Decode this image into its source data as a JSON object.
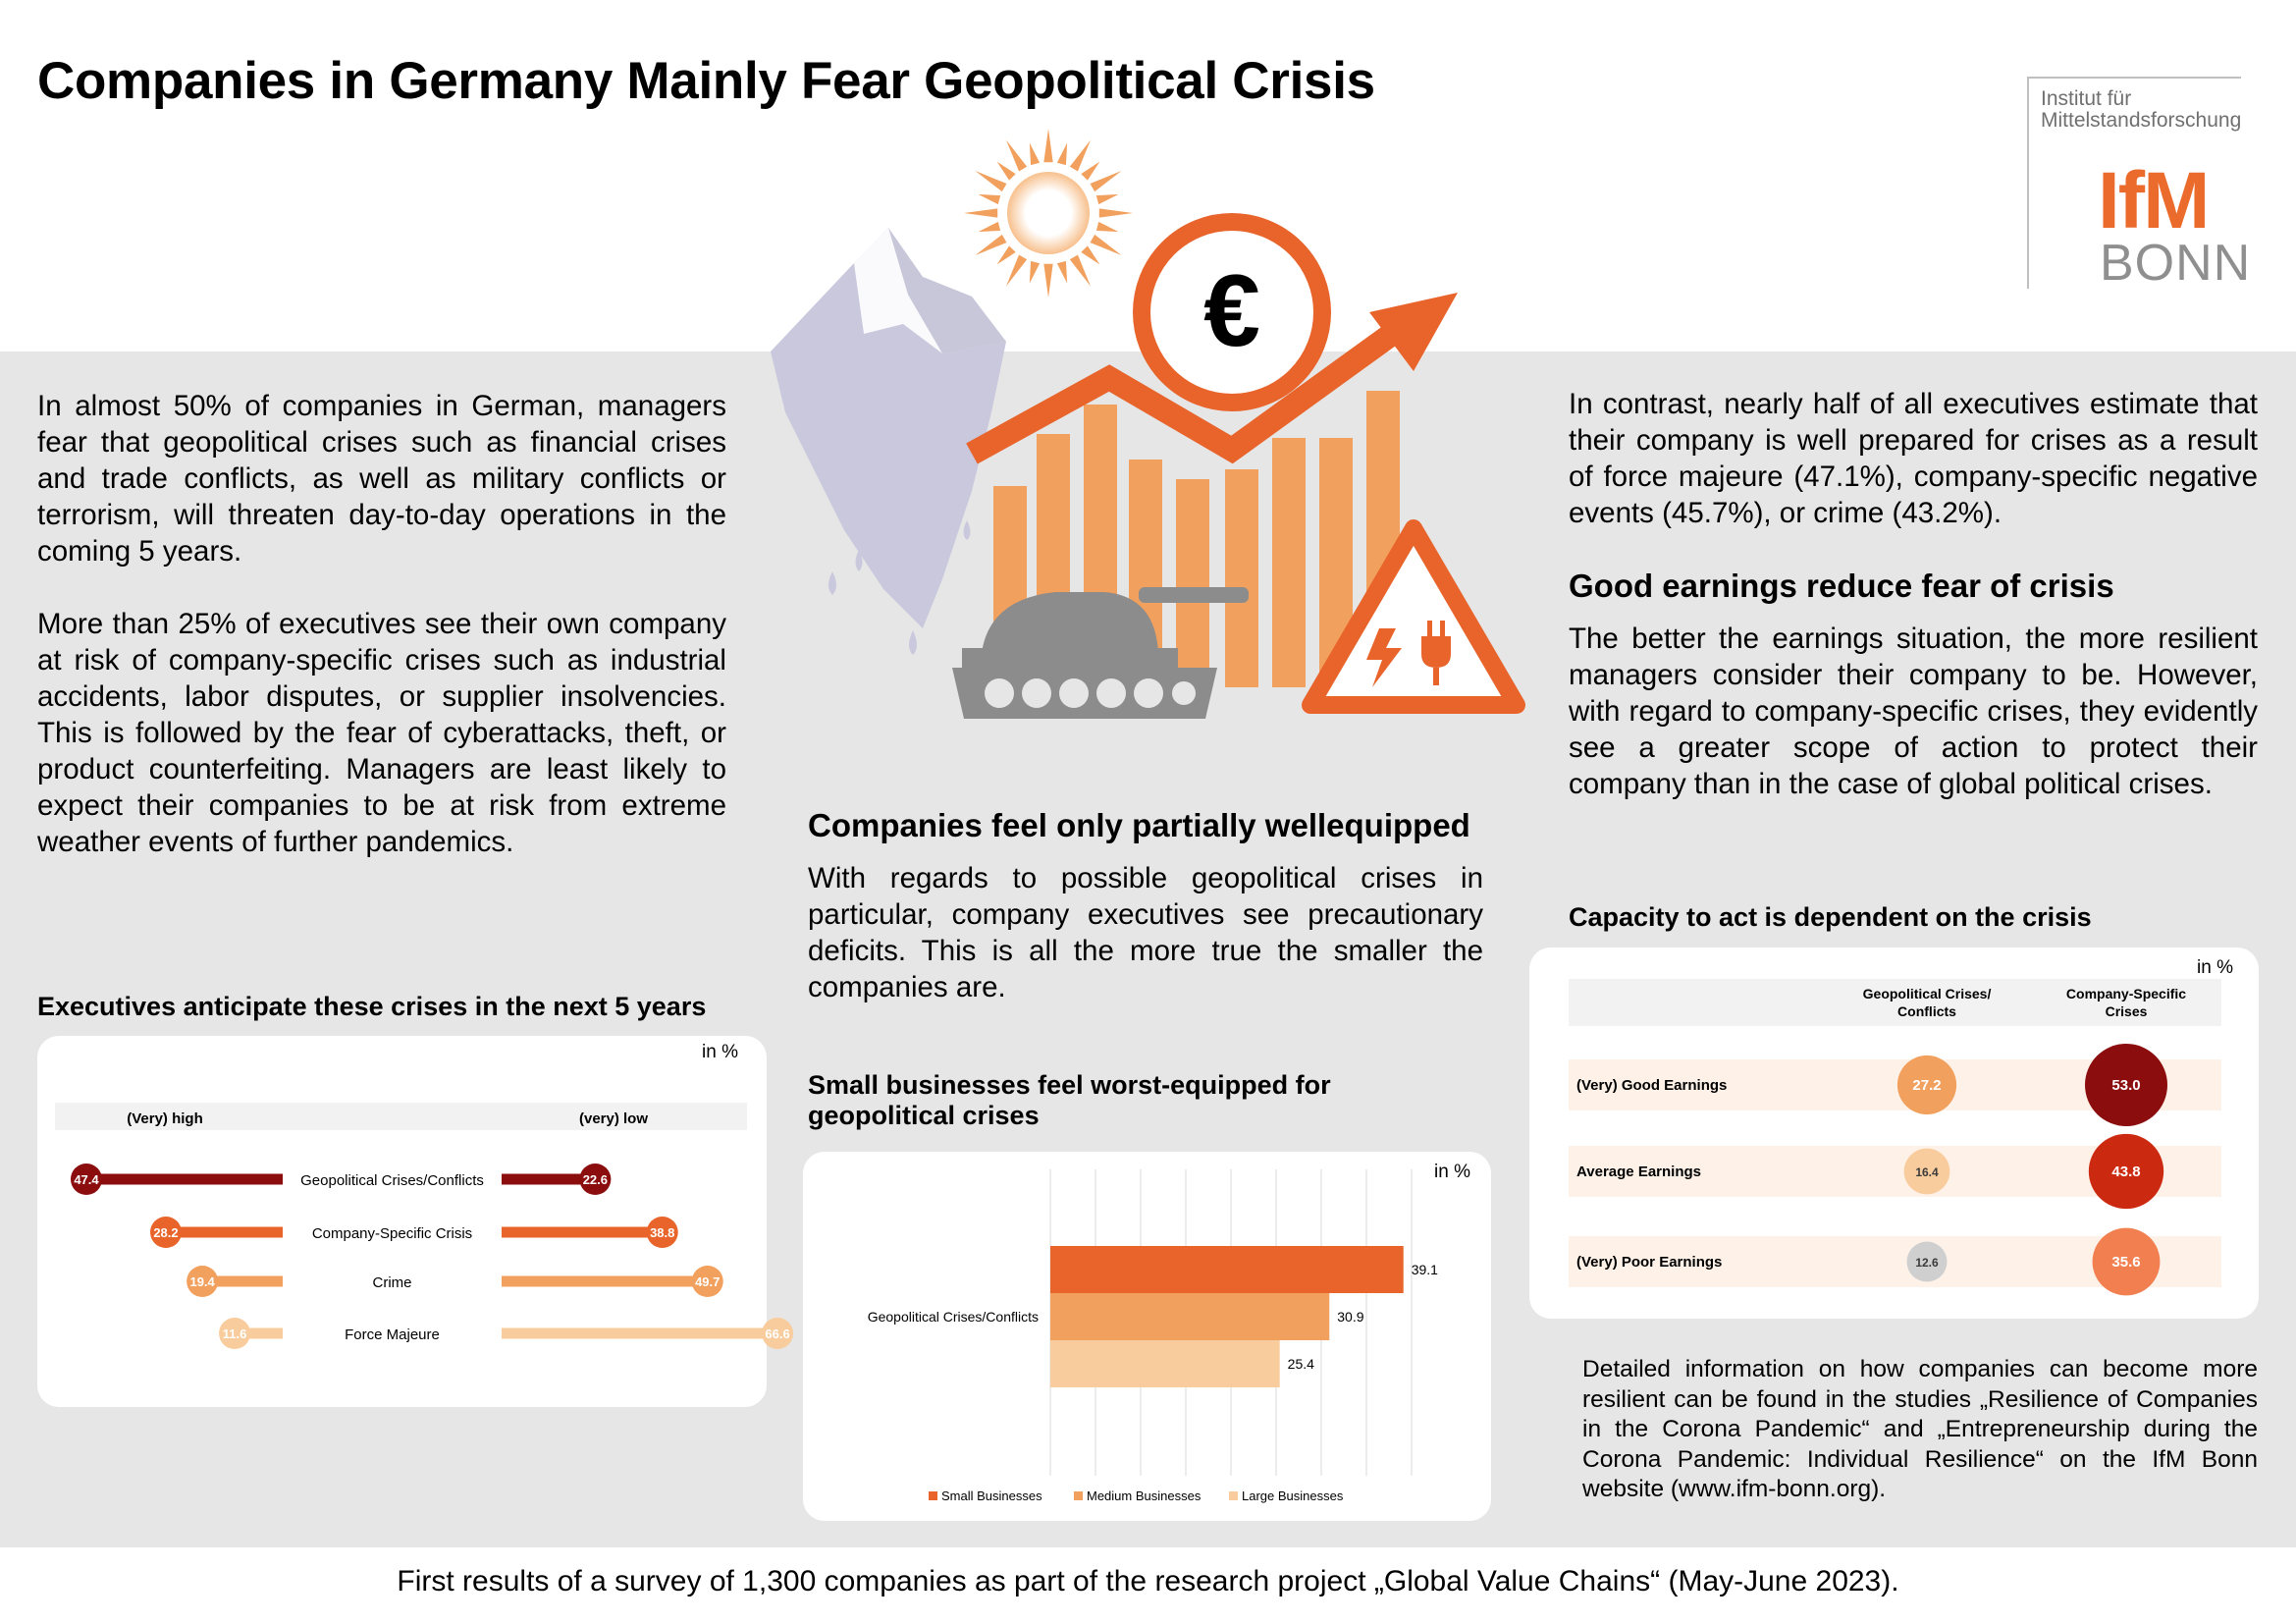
{
  "title": "Companies in Germany Mainly Fear Geopolitical Crisis",
  "logo": {
    "line1": "Institut für",
    "line2": "Mittelstandsforschung",
    "ifm": "IfM",
    "bonn": "BONN"
  },
  "illustration": {
    "currency_symbol": "€"
  },
  "left_text": [
    "In almost 50% of companies in German, managers fear that geopolitical crises such as financial crises and trade conflicts, as well as military conflicts or terrorism, will threaten day-to-day operations in the coming 5 years.",
    "More than 25% of executives see their own company at risk of company-specific crises such as industrial accidents, labor disputes, or supplier insolvencies. This is followed by the fear of cyberattacks, theft, or product counterfeiting. Managers are least likely to expect their companies to be at risk from extreme weather events of further pandemics."
  ],
  "middle": {
    "heading": "Companies feel only partially wellequipped",
    "text": "With regards to possible geopolitical crises in particular, company executives see precautionary deficits. This is all the more true the smaller the companies are."
  },
  "right": {
    "text1": "In contrast, nearly half of all executives estimate that their company is well prepared for crises as a result of force majeure (47.1%), company-specific negative events (45.7%), or crime (43.2%).",
    "heading": "Good earnings reduce fear of crisis",
    "text2": "The better the earnings situation, the more resilient managers consider their company to be. However, with regard to company-specific crises, they evidently see a greater scope of action to protect their company than in the case of global political crises.",
    "info": "Detailed information on how companies can become more resilient can be found in the studies „Resilience of Companies in the Corona Pandemic“ and „Entrepreneurship during the Corona Pandemic: Individual Resilience“ on the IfM Bonn website (www.ifm-bonn.org)."
  },
  "footer": "First results of a survey of 1,300 companies as part of the research project „Global Value Chains“ (May-June 2023).",
  "colors": {
    "dark_red": "#8b0d0d",
    "orange_red": "#e8642b",
    "orange": "#f2a05d",
    "light_orange": "#f9cc9d",
    "band_gray": "#e6e6e6",
    "brand_orange": "#ea6b2c"
  },
  "chart_data": [
    {
      "type": "dumbbell",
      "title": "Executives anticipate these crises in the next 5 years",
      "unit": "in %",
      "left_header": "(Very) high",
      "right_header": "(very) low",
      "categories": [
        "Geopolitical Crises/Conflicts",
        "Company-Specific Crisis",
        "Crime",
        "Force Majeure"
      ],
      "series": [
        {
          "name": "(Very) high",
          "values": [
            47.4,
            28.2,
            19.4,
            11.6
          ]
        },
        {
          "name": "(very) low",
          "values": [
            22.6,
            38.8,
            49.7,
            66.6
          ]
        }
      ],
      "row_colors": [
        "#8b0d0d",
        "#e8642b",
        "#f2a05d",
        "#f9cc9d"
      ]
    },
    {
      "type": "bar",
      "orientation": "horizontal",
      "title": "Small businesses feel worst-equipped for geopolitical crises",
      "unit": "in %",
      "categories": [
        "Geopolitical Crises/Conflicts"
      ],
      "series": [
        {
          "name": "Small Businesses",
          "values": [
            39.1
          ],
          "color": "#e8642b"
        },
        {
          "name": "Medium Businesses",
          "values": [
            30.9
          ],
          "color": "#f2a05d"
        },
        {
          "name": "Large Businesses",
          "values": [
            25.4
          ],
          "color": "#f9cc9d"
        }
      ],
      "xlim": [
        0,
        40
      ],
      "legend": "bottom"
    },
    {
      "type": "bubble-table",
      "title": "Capacity to act is dependent on the crisis",
      "unit": "in %",
      "columns": [
        "Geopolitical Crises/Conflicts",
        "Company-Specific Crises"
      ],
      "rows": [
        {
          "label": "(Very) Good Earnings",
          "values": [
            27.2,
            53.0
          ]
        },
        {
          "label": "Average Earnings",
          "values": [
            16.4,
            43.8
          ]
        },
        {
          "label": "(Very) Poor Earnings",
          "values": [
            12.6,
            35.6
          ]
        }
      ]
    }
  ]
}
